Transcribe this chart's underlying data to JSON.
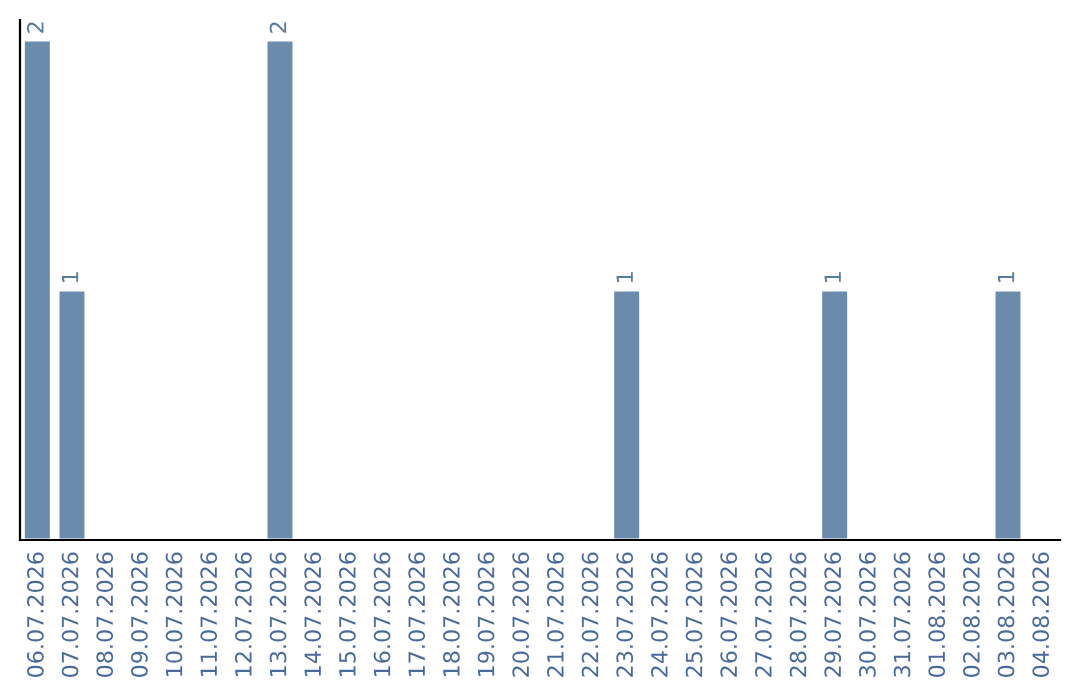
{
  "chart_data": {
    "type": "bar",
    "categories": [
      "06.07.2026",
      "07.07.2026",
      "08.07.2026",
      "09.07.2026",
      "10.07.2026",
      "11.07.2026",
      "12.07.2026",
      "13.07.2026",
      "14.07.2026",
      "15.07.2026",
      "16.07.2026",
      "17.07.2026",
      "18.07.2026",
      "19.07.2026",
      "20.07.2026",
      "21.07.2026",
      "22.07.2026",
      "23.07.2026",
      "24.07.2026",
      "25.07.2026",
      "26.07.2026",
      "27.07.2026",
      "28.07.2026",
      "29.07.2026",
      "30.07.2026",
      "31.07.2026",
      "01.08.2026",
      "02.08.2026",
      "03.08.2026",
      "04.08.2026"
    ],
    "values": [
      2,
      1,
      null,
      null,
      null,
      null,
      null,
      2,
      null,
      null,
      null,
      null,
      null,
      null,
      null,
      null,
      null,
      1,
      null,
      null,
      null,
      null,
      null,
      1,
      null,
      null,
      null,
      null,
      1,
      null
    ],
    "color": "#6a8bac",
    "ylim": [
      0,
      2.08
    ],
    "tick_labels": "x",
    "data_labels": true
  }
}
